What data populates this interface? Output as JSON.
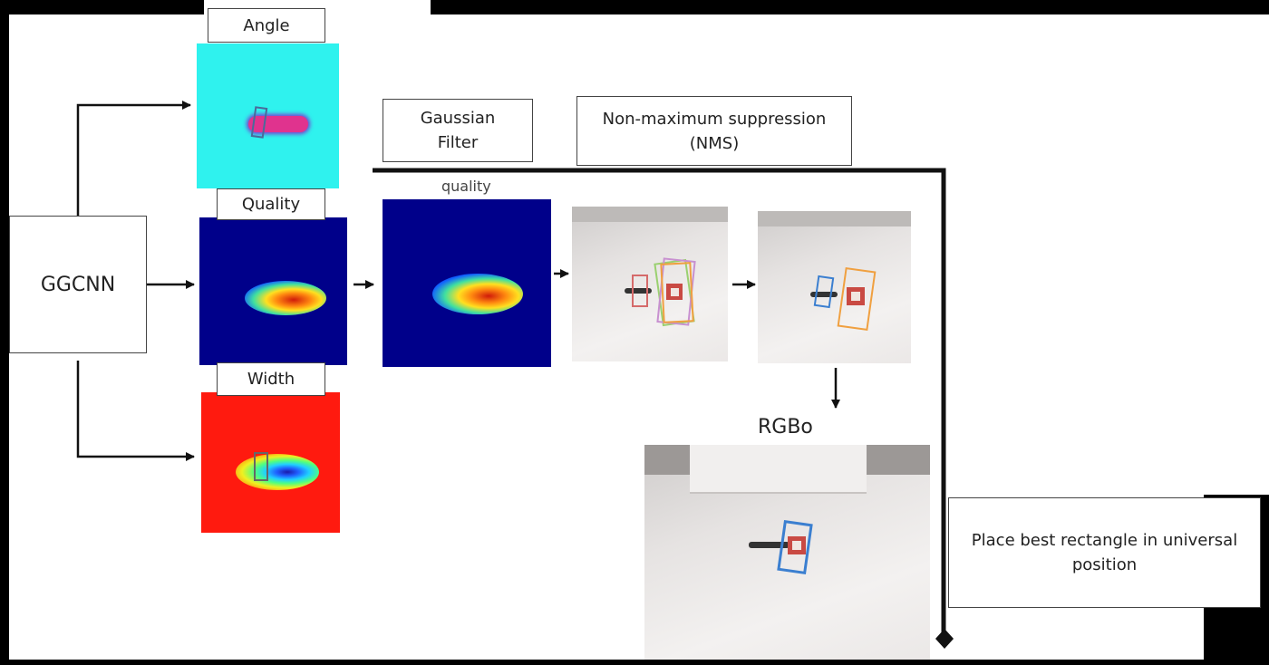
{
  "nodes": {
    "ggcnn": "GGCNN",
    "angle": "Angle",
    "quality": "Quality",
    "width": "Width",
    "gaussian_filter": "Gaussian\nFilter",
    "nms": "Non-maximum suppression\n(NMS)",
    "quality_caption": "quality",
    "rgbo_caption": "RGBo",
    "place_best": "Place best rectangle in universal\nposition"
  },
  "colors": {
    "angle_bg": "#2ff2ee",
    "angle_blob": "#e0338e",
    "quality_bg": "#00008a",
    "width_bg": "#ff1a0f",
    "arrow": "#111111",
    "rect_blue": "#3b7fd0",
    "rect_orange": "#f0a040"
  },
  "icons": {
    "arrow_head": "triangle-arrow-icon",
    "end_marker": "diamond-icon"
  }
}
